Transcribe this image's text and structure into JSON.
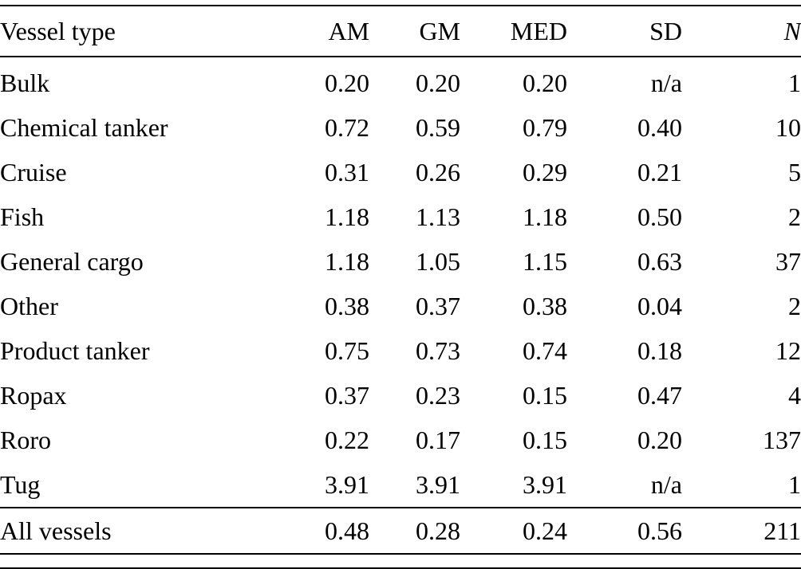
{
  "colors": {
    "text": "#000000",
    "background": "#ffffff",
    "rule": "#000000"
  },
  "table": {
    "columns": [
      "Vessel type",
      "AM",
      "GM",
      "MED",
      "SD",
      "N"
    ],
    "rows": [
      {
        "type": "Bulk",
        "values": [
          "0.20",
          "0.20",
          "0.20",
          "n/a",
          "1"
        ]
      },
      {
        "type": "Chemical tanker",
        "values": [
          "0.72",
          "0.59",
          "0.79",
          "0.40",
          "10"
        ]
      },
      {
        "type": "Cruise",
        "values": [
          "0.31",
          "0.26",
          "0.29",
          "0.21",
          "5"
        ]
      },
      {
        "type": "Fish",
        "values": [
          "1.18",
          "1.13",
          "1.18",
          "0.50",
          "2"
        ]
      },
      {
        "type": "General cargo",
        "values": [
          "1.18",
          "1.05",
          "1.15",
          "0.63",
          "37"
        ]
      },
      {
        "type": "Other",
        "values": [
          "0.38",
          "0.37",
          "0.38",
          "0.04",
          "2"
        ]
      },
      {
        "type": "Product tanker",
        "values": [
          "0.75",
          "0.73",
          "0.74",
          "0.18",
          "12"
        ]
      },
      {
        "type": "Ropax",
        "values": [
          "0.37",
          "0.23",
          "0.15",
          "0.47",
          "4"
        ]
      },
      {
        "type": "Roro",
        "values": [
          "0.22",
          "0.17",
          "0.15",
          "0.20",
          "137"
        ]
      },
      {
        "type": "Tug",
        "values": [
          "3.91",
          "3.91",
          "3.91",
          "n/a",
          "1"
        ]
      }
    ],
    "footer": {
      "type": "All vessels",
      "values": [
        "0.48",
        "0.28",
        "0.24",
        "0.56",
        "211"
      ]
    }
  }
}
